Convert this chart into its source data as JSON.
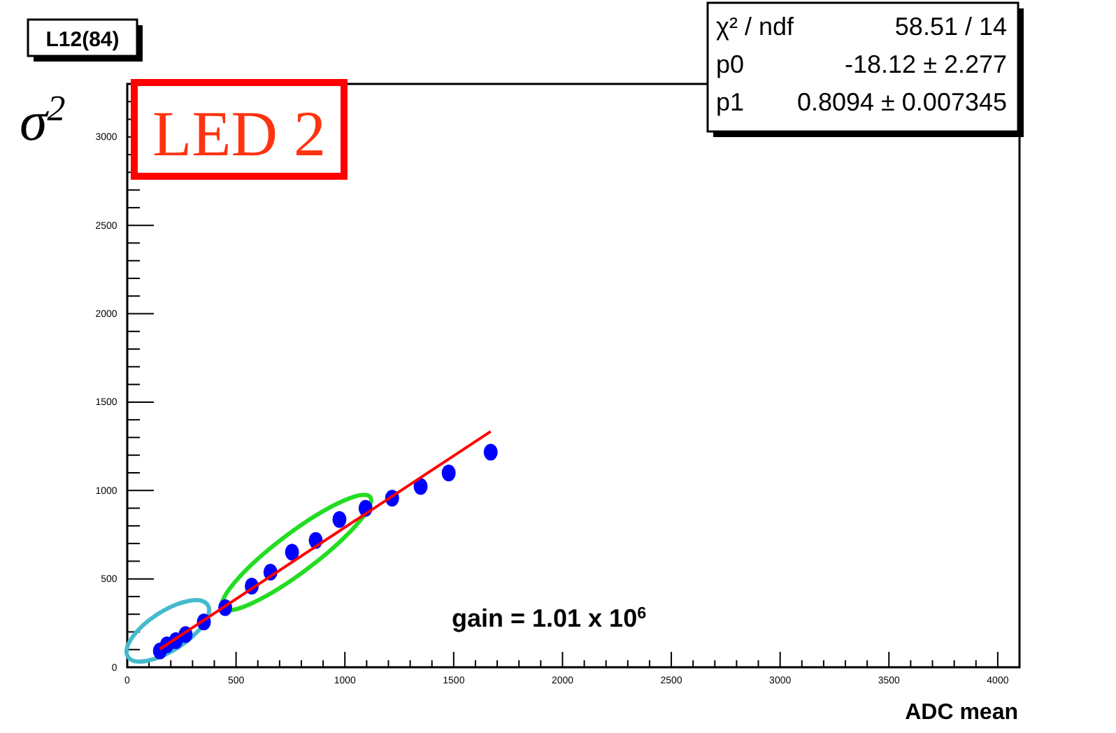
{
  "chart_data": {
    "type": "scatter",
    "title": "L12(84)",
    "xlabel": "ADC mean",
    "ylabel": "σ$^{2}$",
    "annotations": [
      "LED 2",
      "χ² / ndf",
      "58.51 / 14",
      "p0",
      "-18.12 ± 2.277",
      "p1",
      "0.8094 ± 0.007345",
      "gain = 1.01 x 10$^{6}$"
    ],
    "xlim": [
      0,
      4100
    ],
    "ylim": [
      0,
      3300
    ],
    "marker": "circle",
    "grid": false,
    "xticks": [
      0,
      {
        "value": 100,
        "label": null
      },
      {
        "value": 200,
        "label": null
      },
      {
        "value": 300,
        "label": null
      },
      {
        "value": 400,
        "label": null
      },
      500,
      {
        "value": 600,
        "label": null
      },
      {
        "value": 700,
        "label": null
      },
      {
        "value": 800,
        "label": null
      },
      {
        "value": 900,
        "label": null
      },
      1000,
      {
        "value": 1100,
        "label": null
      },
      {
        "value": 1200,
        "label": null
      },
      {
        "value": 1300,
        "label": null
      },
      {
        "value": 1400,
        "label": null
      },
      1500,
      {
        "value": 1600,
        "label": null
      },
      {
        "value": 1700,
        "label": null
      },
      {
        "value": 1800,
        "label": null
      },
      {
        "value": 1900,
        "label": null
      },
      2000,
      {
        "value": 2100,
        "label": null
      },
      {
        "value": 2200,
        "label": null
      },
      {
        "value": 2300,
        "label": null
      },
      {
        "value": 2400,
        "label": null
      },
      2500,
      {
        "value": 2600,
        "label": null
      },
      {
        "value": 2700,
        "label": null
      },
      {
        "value": 2800,
        "label": null
      },
      {
        "value": 2900,
        "label": null
      },
      3000,
      {
        "value": 3100,
        "label": null
      },
      {
        "value": 3200,
        "label": null
      },
      {
        "value": 3300,
        "label": null
      },
      {
        "value": 3400,
        "label": null
      },
      3500,
      {
        "value": 3600,
        "label": null
      },
      {
        "value": 3700,
        "label": null
      },
      {
        "value": 3800,
        "label": null
      },
      {
        "value": 3900,
        "label": null
      },
      4000
    ],
    "yticks": [
      0,
      {
        "value": 100,
        "label": null
      },
      {
        "value": 200,
        "label": null
      },
      {
        "value": 300,
        "label": null
      },
      {
        "value": 400,
        "label": null
      },
      500,
      {
        "value": 600,
        "label": null
      },
      {
        "value": 700,
        "label": null
      },
      {
        "value": 800,
        "label": null
      },
      {
        "value": 900,
        "label": null
      },
      1000,
      {
        "value": 1100,
        "label": null
      },
      {
        "value": 1200,
        "label": null
      },
      {
        "value": 1300,
        "label": null
      },
      {
        "value": 1400,
        "label": null
      },
      1500,
      {
        "value": 1600,
        "label": null
      },
      {
        "value": 1700,
        "label": null
      },
      {
        "value": 1800,
        "label": null
      },
      {
        "value": 1900,
        "label": null
      },
      2000,
      {
        "value": 2100,
        "label": null
      },
      {
        "value": 2200,
        "label": null
      },
      {
        "value": 2300,
        "label": null
      },
      {
        "value": 2400,
        "label": null
      },
      2500,
      {
        "value": 2600,
        "label": null
      },
      {
        "value": 2700,
        "label": null
      },
      {
        "value": 2800,
        "label": null
      },
      {
        "value": 2900,
        "label": null
      },
      3000,
      {
        "value": 3100,
        "label": null
      },
      {
        "value": 3200,
        "label": null
      }
    ],
    "series": [
      {
        "color": "#0000ff",
        "x": [
          150,
          182,
          223,
          268,
          352,
          450,
          572,
          658,
          757,
          866,
          975,
          1095,
          1217,
          1348,
          1477,
          1670
        ],
        "values": [
          92,
          127,
          150,
          185,
          256,
          337,
          459,
          538,
          651,
          717,
          836,
          899,
          957,
          1023,
          1099,
          1217
        ]
      },
      {
        "type": "line",
        "color": "#ff0000",
        "marker": "none",
        "line_style": "solid",
        "x": [
          150,
          1670
        ],
        "values": [
          103,
          1334
        ]
      }
    ]
  }
}
